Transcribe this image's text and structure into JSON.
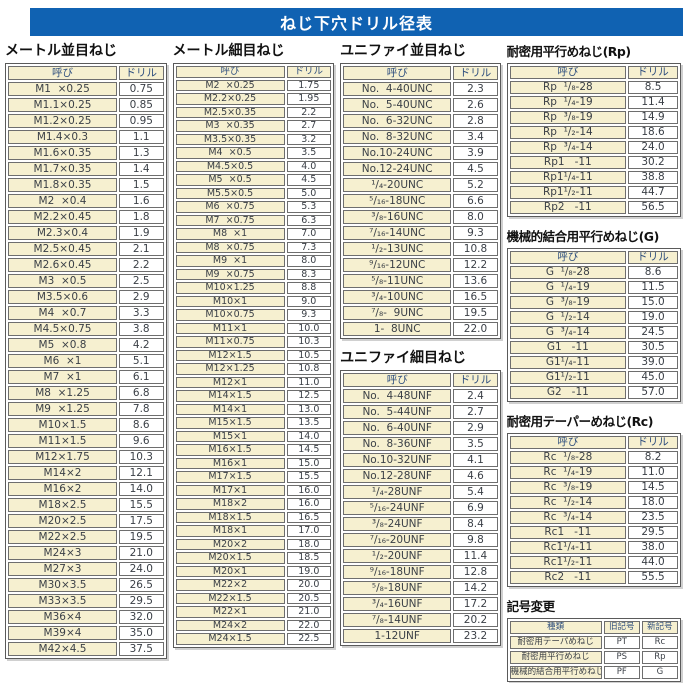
{
  "title": "ねじ下穴ドリル径表",
  "colors": {
    "accent_blue": "#1062b2",
    "cell_cream": "#f6f0d0",
    "header_text": "#2e4e7e",
    "body_text": "#3a3f46"
  },
  "tables": {
    "metric_coarse": {
      "title": "メートル並目ねじ",
      "headers": [
        "呼び",
        "ドリル"
      ],
      "rows": [
        [
          "M1  ×0.25",
          "0.75"
        ],
        [
          "M1.1×0.25",
          "0.85"
        ],
        [
          "M1.2×0.25",
          "0.95"
        ],
        [
          "M1.4×0.3",
          "1.1"
        ],
        [
          "M1.6×0.35",
          "1.3"
        ],
        [
          "M1.7×0.35",
          "1.4"
        ],
        [
          "M1.8×0.35",
          "1.5"
        ],
        [
          "M2  ×0.4",
          "1.6"
        ],
        [
          "M2.2×0.45",
          "1.8"
        ],
        [
          "M2.3×0.4",
          "1.9"
        ],
        [
          "M2.5×0.45",
          "2.1"
        ],
        [
          "M2.6×0.45",
          "2.2"
        ],
        [
          "M3  ×0.5",
          "2.5"
        ],
        [
          "M3.5×0.6",
          "2.9"
        ],
        [
          "M4  ×0.7",
          "3.3"
        ],
        [
          "M4.5×0.75",
          "3.8"
        ],
        [
          "M5  ×0.8",
          "4.2"
        ],
        [
          "M6  ×1",
          "5.1"
        ],
        [
          "M7  ×1",
          "6.1"
        ],
        [
          "M8  ×1.25",
          "6.8"
        ],
        [
          "M9  ×1.25",
          "7.8"
        ],
        [
          "M10×1.5",
          "8.6"
        ],
        [
          "M11×1.5",
          "9.6"
        ],
        [
          "M12×1.75",
          "10.3"
        ],
        [
          "M14×2",
          "12.1"
        ],
        [
          "M16×2",
          "14.0"
        ],
        [
          "M18×2.5",
          "15.5"
        ],
        [
          "M20×2.5",
          "17.5"
        ],
        [
          "M22×2.5",
          "19.5"
        ],
        [
          "M24×3",
          "21.0"
        ],
        [
          "M27×3",
          "24.0"
        ],
        [
          "M30×3.5",
          "26.5"
        ],
        [
          "M33×3.5",
          "29.5"
        ],
        [
          "M36×4",
          "32.0"
        ],
        [
          "M39×4",
          "35.0"
        ],
        [
          "M42×4.5",
          "37.5"
        ]
      ]
    },
    "metric_fine": {
      "title": "メートル細目ねじ",
      "headers": [
        "呼び",
        "ドリル"
      ],
      "rows": [
        [
          "M2  ×0.25",
          "1.75"
        ],
        [
          "M2.2×0.25",
          "1.95"
        ],
        [
          "M2.5×0.35",
          "2.2"
        ],
        [
          "M3  ×0.35",
          "2.7"
        ],
        [
          "M3.5×0.35",
          "3.2"
        ],
        [
          "M4  ×0.5",
          "3.5"
        ],
        [
          "M4.5×0.5",
          "4.0"
        ],
        [
          "M5  ×0.5",
          "4.5"
        ],
        [
          "M5.5×0.5",
          "5.0"
        ],
        [
          "M6  ×0.75",
          "5.3"
        ],
        [
          "M7  ×0.75",
          "6.3"
        ],
        [
          "M8  ×1",
          "7.0"
        ],
        [
          "M8  ×0.75",
          "7.3"
        ],
        [
          "M9  ×1",
          "8.0"
        ],
        [
          "M9  ×0.75",
          "8.3"
        ],
        [
          "M10×1.25",
          "8.8"
        ],
        [
          "M10×1",
          "9.0"
        ],
        [
          "M10×0.75",
          "9.3"
        ],
        [
          "M11×1",
          "10.0"
        ],
        [
          "M11×0.75",
          "10.3"
        ],
        [
          "M12×1.5",
          "10.5"
        ],
        [
          "M12×1.25",
          "10.8"
        ],
        [
          "M12×1",
          "11.0"
        ],
        [
          "M14×1.5",
          "12.5"
        ],
        [
          "M14×1",
          "13.0"
        ],
        [
          "M15×1.5",
          "13.5"
        ],
        [
          "M15×1",
          "14.0"
        ],
        [
          "M16×1.5",
          "14.5"
        ],
        [
          "M16×1",
          "15.0"
        ],
        [
          "M17×1.5",
          "15.5"
        ],
        [
          "M17×1",
          "16.0"
        ],
        [
          "M18×2",
          "16.0"
        ],
        [
          "M18×1.5",
          "16.5"
        ],
        [
          "M18×1",
          "17.0"
        ],
        [
          "M20×2",
          "18.0"
        ],
        [
          "M20×1.5",
          "18.5"
        ],
        [
          "M20×1",
          "19.0"
        ],
        [
          "M22×2",
          "20.0"
        ],
        [
          "M22×1.5",
          "20.5"
        ],
        [
          "M22×1",
          "21.0"
        ],
        [
          "M24×2",
          "22.0"
        ],
        [
          "M24×1.5",
          "22.5"
        ]
      ]
    },
    "unified_coarse": {
      "title": "ユニファイ並目ねじ",
      "headers": [
        "呼び",
        "ドリル"
      ],
      "rows": [
        [
          "No.  4-40UNC",
          "2.3"
        ],
        [
          "No.  5-40UNC",
          "2.6"
        ],
        [
          "No.  6-32UNC",
          "2.8"
        ],
        [
          "No.  8-32UNC",
          "3.4"
        ],
        [
          "No.10-24UNC",
          "3.9"
        ],
        [
          "No.12-24UNC",
          "4.5"
        ],
        [
          "¹/₄-20UNC",
          "5.2"
        ],
        [
          "⁵/₁₆-18UNC",
          "6.6"
        ],
        [
          "³/₈-16UNC",
          "8.0"
        ],
        [
          "⁷/₁₆-14UNC",
          "9.3"
        ],
        [
          "¹/₂-13UNC",
          "10.8"
        ],
        [
          "⁹/₁₆-12UNC",
          "12.2"
        ],
        [
          "⁵/₈-11UNC",
          "13.6"
        ],
        [
          "³/₄-10UNC",
          "16.5"
        ],
        [
          "⁷/₈-  9UNC",
          "19.5"
        ],
        [
          "1-  8UNC",
          "22.0"
        ]
      ]
    },
    "unified_fine": {
      "title": "ユニファイ細目ねじ",
      "headers": [
        "呼び",
        "ドリル"
      ],
      "rows": [
        [
          "No.  4-48UNF",
          "2.4"
        ],
        [
          "No.  5-44UNF",
          "2.7"
        ],
        [
          "No.  6-40UNF",
          "2.9"
        ],
        [
          "No.  8-36UNF",
          "3.5"
        ],
        [
          "No.10-32UNF",
          "4.1"
        ],
        [
          "No.12-28UNF",
          "4.6"
        ],
        [
          "¹/₄-28UNF",
          "5.4"
        ],
        [
          "⁵/₁₆-24UNF",
          "6.9"
        ],
        [
          "³/₈-24UNF",
          "8.4"
        ],
        [
          "⁷/₁₆-20UNF",
          "9.8"
        ],
        [
          "¹/₂-20UNF",
          "11.4"
        ],
        [
          "⁹/₁₆-18UNF",
          "12.8"
        ],
        [
          "⁵/₈-18UNF",
          "14.2"
        ],
        [
          "³/₄-16UNF",
          "17.2"
        ],
        [
          "⁷/₈-14UNF",
          "20.2"
        ],
        [
          "1-12UNF",
          "23.2"
        ]
      ]
    },
    "rp": {
      "title": "耐密用平行めねじ(Rp)",
      "headers": [
        "呼び",
        "ドリル"
      ],
      "rows": [
        [
          "Rp  ¹/₈-28",
          "8.5"
        ],
        [
          "Rp  ¹/₄-19",
          "11.4"
        ],
        [
          "Rp  ³/₈-19",
          "14.9"
        ],
        [
          "Rp  ¹/₂-14",
          "18.6"
        ],
        [
          "Rp  ³/₄-14",
          "24.0"
        ],
        [
          "Rp1   -11",
          "30.2"
        ],
        [
          "Rp1¹/₄-11",
          "38.8"
        ],
        [
          "Rp1¹/₂-11",
          "44.7"
        ],
        [
          "Rp2   -11",
          "56.5"
        ]
      ]
    },
    "g": {
      "title": "機械的結合用平行めねじ(G)",
      "headers": [
        "呼び",
        "ドリル"
      ],
      "rows": [
        [
          "G  ¹/₈-28",
          "8.6"
        ],
        [
          "G  ¹/₄-19",
          "11.5"
        ],
        [
          "G  ³/₈-19",
          "15.0"
        ],
        [
          "G  ¹/₂-14",
          "19.0"
        ],
        [
          "G  ³/₄-14",
          "24.5"
        ],
        [
          "G1   -11",
          "30.5"
        ],
        [
          "G1¹/₄-11",
          "39.0"
        ],
        [
          "G1¹/₂-11",
          "45.0"
        ],
        [
          "G2   -11",
          "57.0"
        ]
      ]
    },
    "rc": {
      "title": "耐密用テーパーめねじ(Rc)",
      "headers": [
        "呼び",
        "ドリル"
      ],
      "rows": [
        [
          "Rc  ¹/₈-28",
          "8.2"
        ],
        [
          "Rc  ¹/₄-19",
          "11.0"
        ],
        [
          "Rc  ³/₈-19",
          "14.5"
        ],
        [
          "Rc  ¹/₂-14",
          "18.0"
        ],
        [
          "Rc  ³/₄-14",
          "23.5"
        ],
        [
          "Rc1   -11",
          "29.5"
        ],
        [
          "Rc1¹/₄-11",
          "38.0"
        ],
        [
          "Rc1¹/₂-11",
          "44.0"
        ],
        [
          "Rc2   -11",
          "55.5"
        ]
      ]
    },
    "symbol_change": {
      "title": "記号変更",
      "headers": [
        "種類",
        "旧記号",
        "新記号"
      ],
      "rows": [
        [
          "耐密用テーパめねじ",
          "PT",
          "Rc"
        ],
        [
          "耐密用平行めねじ",
          "PS",
          "Rp"
        ],
        [
          "機械的結合用平行めねじ",
          "PF",
          "G"
        ]
      ]
    }
  }
}
